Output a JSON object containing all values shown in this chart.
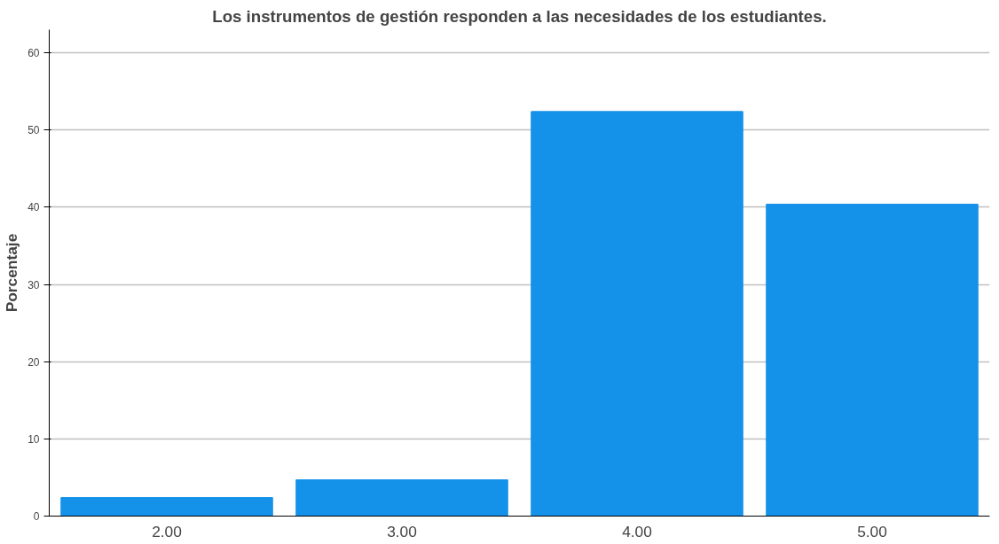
{
  "chart_data": {
    "type": "bar",
    "title": "Los instrumentos de gestión responden a las necesidades de los estudiantes.",
    "ylabel": "Porcentaje",
    "categories": [
      "2.00",
      "3.00",
      "4.00",
      "5.00"
    ],
    "values": [
      2.4,
      4.7,
      52.4,
      40.4
    ],
    "color": "#1491e8",
    "ylim": [
      0,
      63
    ],
    "yticks": [
      0,
      10,
      20,
      30,
      40,
      50,
      60
    ],
    "grid": "y"
  }
}
